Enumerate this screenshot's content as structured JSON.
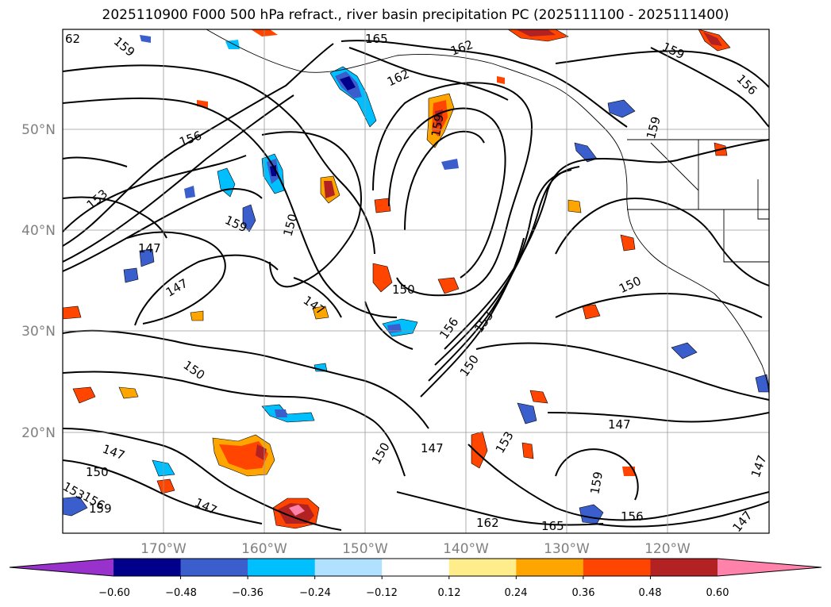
{
  "title": "2025110900 F000 500 hPa refract., river basin precipitation PC (2025111100 - 2025111400)",
  "lat_labels": [
    "50°N",
    "40°N",
    "30°N",
    "20°N"
  ],
  "lon_labels": [
    "170°W",
    "160°W",
    "150°W",
    "140°W",
    "130°W",
    "120°W"
  ],
  "colorbar": {
    "colors": [
      "#9932cc",
      "#00008b",
      "#3a5fcd",
      "#00bfff",
      "#b0e2ff",
      "#ffffff",
      "#ffec8b",
      "#ffa500",
      "#ff4500",
      "#b22222",
      "#ff82ab"
    ],
    "tick_labels": [
      "−0.60",
      "−0.48",
      "−0.36",
      "−0.24",
      "−0.12",
      "0.12",
      "0.24",
      "0.36",
      "0.48",
      "0.60"
    ]
  },
  "contour_labels": [
    "62",
    "159",
    "165",
    "162",
    "162",
    "159",
    "156",
    "159",
    "159",
    "156",
    "153",
    "150",
    "159",
    "147",
    "147",
    "150",
    "147",
    "150",
    "156",
    "153",
    "150",
    "150",
    "147",
    "147",
    "150",
    "147",
    "153",
    "156",
    "159",
    "147",
    "153",
    "159",
    "165",
    "162",
    "156",
    "150",
    "147",
    "147"
  ]
}
